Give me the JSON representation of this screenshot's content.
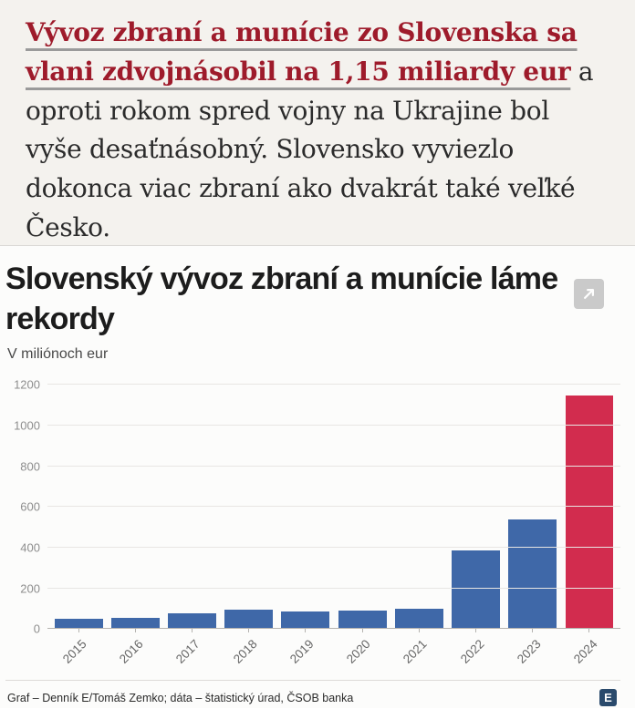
{
  "article": {
    "link_text": "Vývoz zbraní a munície zo Slovenska sa vlani zdvojnásobil na 1,15 miliardy eur",
    "body_text": " a oproti rokom spred vojny na Ukrajine bol vyše desaťnásobný. Slovensko vyviezlo dokonca viac zbraní ako dvakrát také veľké Česko."
  },
  "chart": {
    "title": "Slovenský vývoz zbraní a munície láme rekordy",
    "subtitle": "V miliónoch eur",
    "credit": "Graf – Denník E/Tomáš Zemko; dáta – štatistický úrad, ČSOB banka",
    "logo_letter": "E",
    "expand_icon": "open-expand-arrow"
  },
  "colors": {
    "bar_default": "#3f68a8",
    "bar_highlight": "#d22c4e",
    "headline_red": "#9e1b2b",
    "logo_navy": "#2a4a6c"
  },
  "chart_data": {
    "type": "bar",
    "title": "Slovenský vývoz zbraní a munície láme rekordy",
    "subtitle": "V miliónoch eur",
    "categories": [
      "2015",
      "2016",
      "2017",
      "2018",
      "2019",
      "2020",
      "2021",
      "2022",
      "2023",
      "2024"
    ],
    "values": [
      53,
      55,
      80,
      98,
      87,
      92,
      100,
      385,
      540,
      1150
    ],
    "highlight_category": "2024",
    "xlabel": "",
    "ylabel": "V miliónoch eur",
    "ylim": [
      0,
      1200
    ],
    "yticks": [
      0,
      200,
      400,
      600,
      800,
      1000,
      1200
    ],
    "grid": true,
    "legend": false,
    "x_tick_rotation": -45
  }
}
